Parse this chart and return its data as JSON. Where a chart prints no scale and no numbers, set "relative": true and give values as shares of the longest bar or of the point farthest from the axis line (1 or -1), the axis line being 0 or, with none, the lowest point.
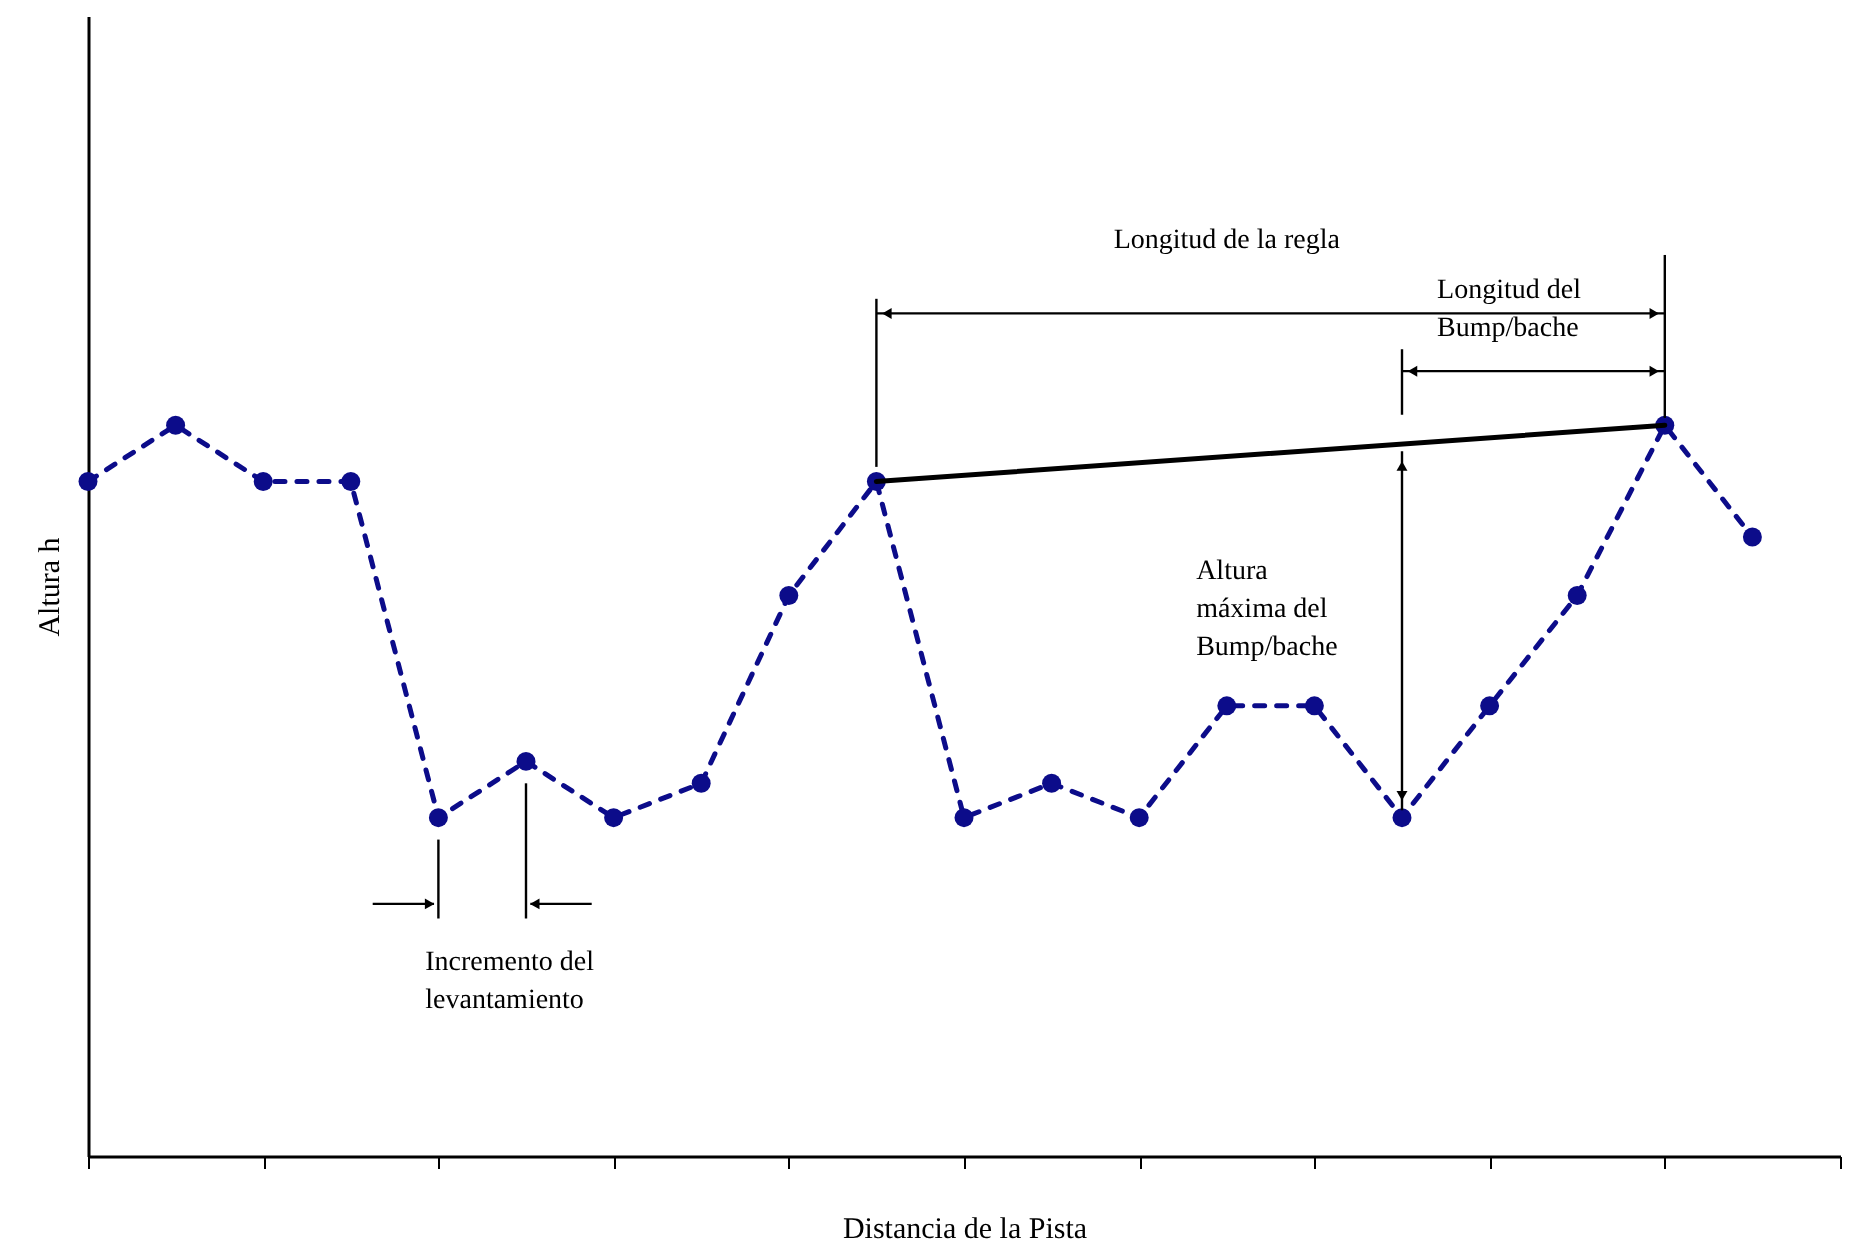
{
  "chart_data": {
    "type": "line",
    "relative": true,
    "xlabel": "Distancia de la Pista",
    "ylabel": "Altura h",
    "categories": [
      null,
      null,
      null,
      null,
      null,
      null,
      null,
      null,
      null,
      null,
      null,
      null,
      null,
      null,
      null,
      null,
      null,
      null,
      null,
      null
    ],
    "series": [
      {
        "color": "#0c0c8a",
        "line_style": "dashed",
        "marker": "circle",
        "values": [
          0.923,
          1.0,
          0.923,
          0.923,
          0.463,
          0.54,
          0.463,
          0.51,
          0.767,
          0.923,
          0.463,
          0.51,
          0.463,
          0.616,
          0.616,
          0.463,
          0.616,
          0.767,
          1.0,
          0.847
        ]
      },
      {
        "color": "#000000",
        "line_style": "solid",
        "marker": "none",
        "values": [
          null,
          null,
          null,
          null,
          null,
          null,
          null,
          null,
          null,
          0.923,
          null,
          null,
          null,
          null,
          null,
          null,
          null,
          null,
          1.0,
          null
        ]
      }
    ],
    "annotations": [
      "Longitud de la regla",
      "Longitud del\nBump/bache",
      "Altura\nmáxima del\nBump/bache",
      "Incremento del\nlevantamiento"
    ],
    "tick_labels": false
  }
}
